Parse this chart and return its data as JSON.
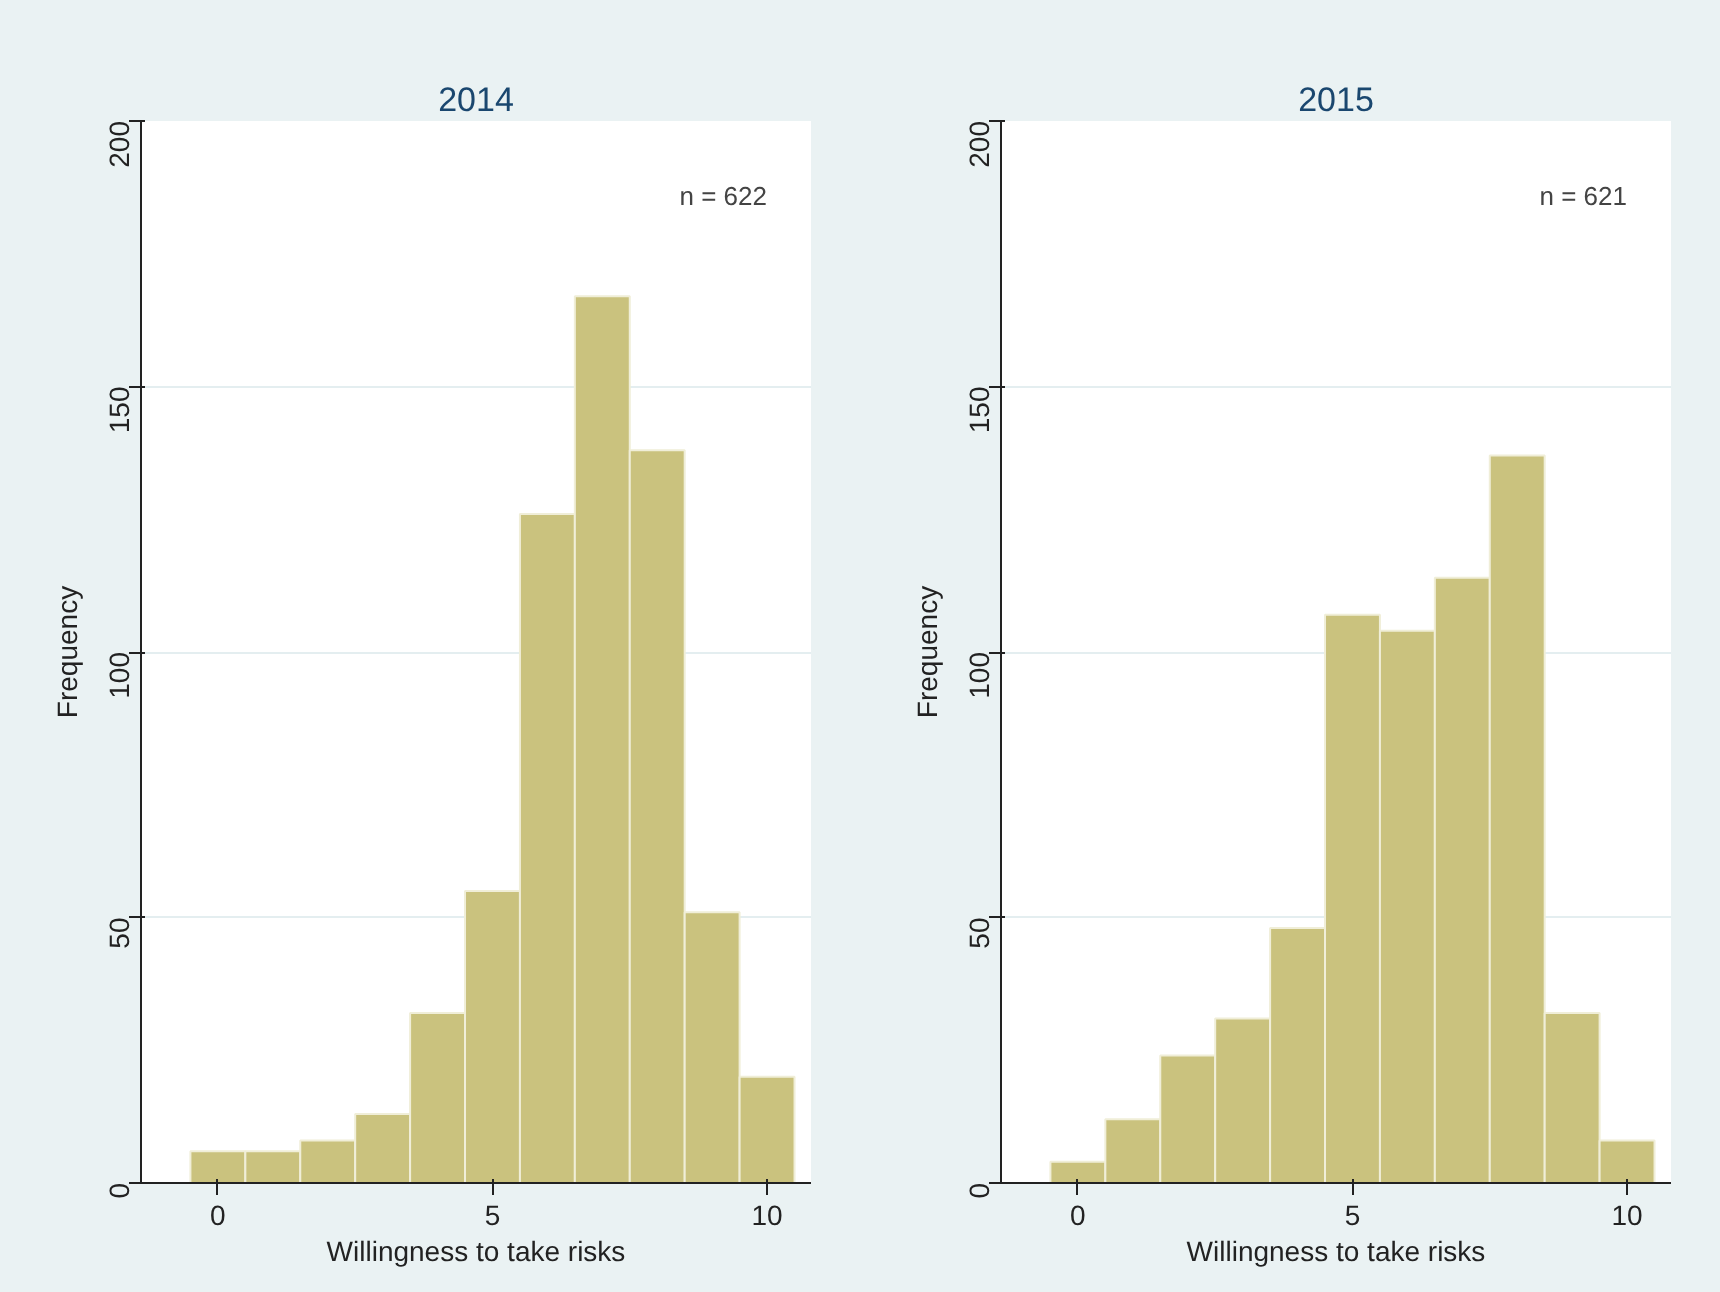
{
  "chart_data": [
    {
      "type": "histogram",
      "title": "2014",
      "xlabel": "Willingness to take risks",
      "ylabel": "Frequency",
      "bins": [
        -0.5,
        0.5,
        1.5,
        2.5,
        3.5,
        4.5,
        5.5,
        6.5,
        7.5,
        8.5,
        9.5,
        10.5
      ],
      "values": [
        6,
        6,
        8,
        13,
        32,
        55,
        126,
        167,
        138,
        51,
        20
      ],
      "color": "#cac27e",
      "xlim": [
        -1.4,
        10.8
      ],
      "ylim": [
        0,
        200
      ],
      "xticks": [
        0,
        5,
        10
      ],
      "yticks": [
        0,
        50,
        100,
        150,
        200
      ],
      "grid": "y",
      "annotations": [
        "n = 622"
      ]
    },
    {
      "type": "histogram",
      "title": "2015",
      "xlabel": "Willingness to take risks",
      "ylabel": "Frequency",
      "bins": [
        -0.5,
        0.5,
        1.5,
        2.5,
        3.5,
        4.5,
        5.5,
        6.5,
        7.5,
        8.5,
        9.5,
        10.5
      ],
      "values": [
        4,
        12,
        24,
        31,
        48,
        107,
        104,
        114,
        137,
        32,
        8
      ],
      "color": "#cac27e",
      "xlim": [
        -1.4,
        10.8
      ],
      "ylim": [
        0,
        200
      ],
      "xticks": [
        0,
        5,
        10
      ],
      "yticks": [
        0,
        50,
        100,
        150,
        200
      ],
      "grid": "y",
      "annotations": [
        "n = 621"
      ]
    }
  ]
}
